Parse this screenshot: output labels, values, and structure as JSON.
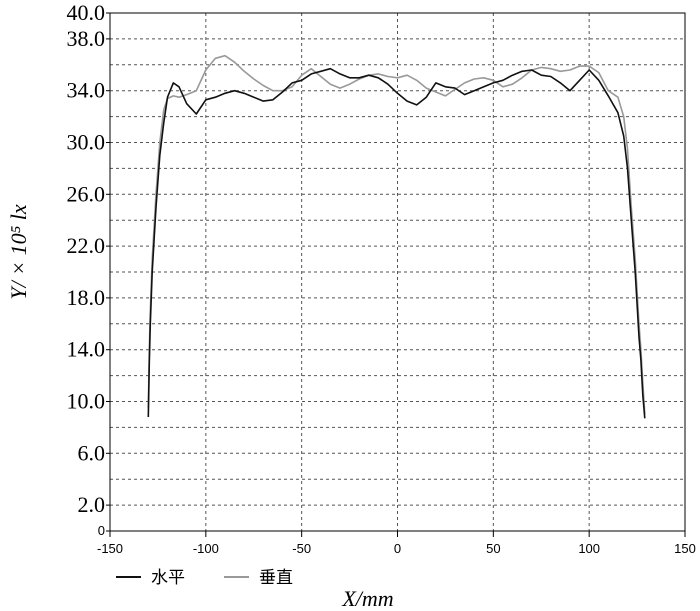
{
  "chart_data": {
    "type": "line",
    "xlabel": "X/mm",
    "ylabel": "Y/ × 10⁵ lx",
    "xlim": [
      -150,
      150
    ],
    "ylim": [
      0,
      40
    ],
    "x_ticks": [
      "-150",
      "-100",
      "-50",
      "0",
      "50",
      "100",
      "150"
    ],
    "y_ticks": [
      {
        "v": 0,
        "t": "0"
      },
      {
        "v": 2,
        "t": "2.0"
      },
      {
        "v": 6,
        "t": "6.0"
      },
      {
        "v": 10,
        "t": "10.0"
      },
      {
        "v": 14,
        "t": "14.0"
      },
      {
        "v": 18,
        "t": "18.0"
      },
      {
        "v": 22,
        "t": "22.0"
      },
      {
        "v": 26,
        "t": "26.0"
      },
      {
        "v": 30,
        "t": "30.0"
      },
      {
        "v": 34,
        "t": "34.0"
      },
      {
        "v": 38,
        "t": "38.0"
      },
      {
        "v": 40,
        "t": "40.0"
      }
    ],
    "grid": true,
    "legend_position": "bottom-left",
    "series": [
      {
        "name": "水平",
        "color": "#111111",
        "x": [
          -130,
          -129.5,
          -129,
          -128,
          -126,
          -124,
          -122,
          -120,
          -117,
          -114,
          -110,
          -105,
          -100,
          -95,
          -90,
          -85,
          -80,
          -75,
          -70,
          -65,
          -60,
          -55,
          -50,
          -45,
          -40,
          -35,
          -30,
          -25,
          -20,
          -15,
          -10,
          -5,
          0,
          5,
          10,
          15,
          20,
          25,
          30,
          35,
          40,
          45,
          50,
          55,
          60,
          65,
          70,
          75,
          80,
          85,
          90,
          95,
          100,
          105,
          110,
          115,
          118,
          120,
          122,
          124,
          126,
          127,
          128,
          129
        ],
        "y": [
          8.8,
          13,
          16,
          20,
          25,
          29,
          31.5,
          33.5,
          34.6,
          34.3,
          33.0,
          32.2,
          33.3,
          33.5,
          33.8,
          34.0,
          33.8,
          33.5,
          33.2,
          33.3,
          33.9,
          34.6,
          34.8,
          35.3,
          35.5,
          35.7,
          35.3,
          35.0,
          35.0,
          35.2,
          35.0,
          34.5,
          33.8,
          33.2,
          32.9,
          33.5,
          34.6,
          34.3,
          34.2,
          33.7,
          34.0,
          34.3,
          34.6,
          34.8,
          35.2,
          35.5,
          35.6,
          35.2,
          35.1,
          34.6,
          34.0,
          34.8,
          35.6,
          34.8,
          33.6,
          32.3,
          30.5,
          28.0,
          24.0,
          20.0,
          15.0,
          13.2,
          10.5,
          8.7
        ]
      },
      {
        "name": "垂直",
        "color": "#999999",
        "x": [
          -130,
          -129.5,
          -129,
          -128,
          -126,
          -124,
          -122,
          -120,
          -117,
          -114,
          -110,
          -105,
          -100,
          -95,
          -90,
          -85,
          -80,
          -75,
          -70,
          -65,
          -60,
          -55,
          -50,
          -45,
          -40,
          -35,
          -30,
          -25,
          -20,
          -15,
          -10,
          -5,
          0,
          5,
          10,
          15,
          20,
          25,
          30,
          35,
          40,
          45,
          50,
          55,
          60,
          65,
          70,
          75,
          80,
          85,
          90,
          95,
          100,
          105,
          110,
          115,
          118,
          120,
          122,
          124,
          126,
          127,
          128,
          129
        ],
        "y": [
          9.5,
          14,
          17,
          21,
          26,
          30,
          32.5,
          33.4,
          33.6,
          33.5,
          33.7,
          34.0,
          35.6,
          36.5,
          36.7,
          36.2,
          35.5,
          34.9,
          34.4,
          34.0,
          34.0,
          34.3,
          35.2,
          35.7,
          35.1,
          34.5,
          34.2,
          34.5,
          34.9,
          35.2,
          35.3,
          35.1,
          35.0,
          35.2,
          34.8,
          34.2,
          33.9,
          33.6,
          34.1,
          34.6,
          34.9,
          35.0,
          34.8,
          34.3,
          34.5,
          35.0,
          35.6,
          35.8,
          35.7,
          35.5,
          35.6,
          35.9,
          35.9,
          35.4,
          34.0,
          33.5,
          32.0,
          29.5,
          25.0,
          21.0,
          16.0,
          14.0,
          11.5,
          9.0
        ]
      }
    ]
  }
}
